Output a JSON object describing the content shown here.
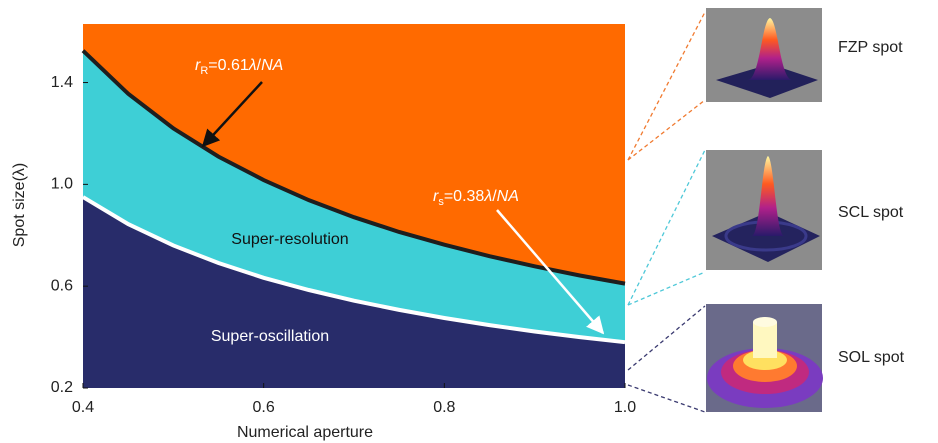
{
  "chart_data": {
    "type": "area",
    "x_label": "Numerical aperture",
    "y_label": "Spot size(λ)",
    "x": [
      0.4,
      0.45,
      0.5,
      0.55,
      0.6,
      0.65,
      0.7,
      0.75,
      0.8,
      0.85,
      0.9,
      0.95,
      1.0
    ],
    "series": [
      {
        "color": "#1e1e1e",
        "values": [
          1.525,
          1.356,
          1.22,
          1.109,
          1.017,
          0.938,
          0.871,
          0.813,
          0.763,
          0.718,
          0.678,
          0.642,
          0.61
        ]
      },
      {
        "color": "#ffffff",
        "values": [
          0.95,
          0.844,
          0.76,
          0.691,
          0.633,
          0.585,
          0.543,
          0.507,
          0.475,
          0.447,
          0.422,
          0.4,
          0.38
        ]
      }
    ],
    "region_colors": {
      "above": "#ff6a00",
      "between": "#3ecfd6",
      "below": "#282c6a"
    },
    "regions": [
      "Super-resolution",
      "Super-oscillation"
    ],
    "annotations": [
      {
        "r": "r",
        "sub": "R",
        "eq": "=0.61",
        "lambda": "λ",
        "slash": "/",
        "na": "NA"
      },
      {
        "r": "r",
        "sub": "s",
        "eq": "=0.38",
        "lambda": "λ",
        "slash": "/",
        "na": "NA"
      }
    ],
    "xlim": [
      0.4,
      1.0
    ],
    "ylim": [
      0.2,
      1.63
    ],
    "xticks": [
      0.4,
      0.6,
      0.8,
      {
        "value": 1,
        "label": "1.0"
      }
    ],
    "yticks": [
      0.2,
      0.6,
      {
        "value": 1,
        "label": "1.0"
      },
      1.4
    ]
  },
  "insets": [
    {
      "label": "FZP spot"
    },
    {
      "label": "SCL spot"
    },
    {
      "label": "SOL spot"
    }
  ]
}
